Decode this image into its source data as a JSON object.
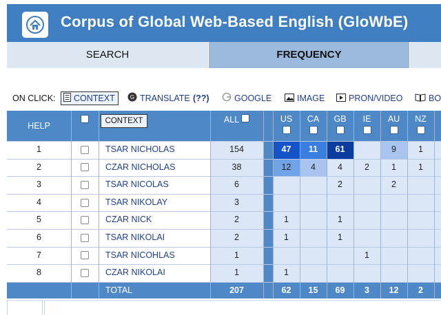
{
  "header": {
    "title": "Corpus of Global Web-Based English (GloWbE)",
    "home_icon": "home-icon",
    "color": "#3f7ec0"
  },
  "tabs": {
    "search": "SEARCH",
    "frequency": "FREQUENCY"
  },
  "onclick": {
    "label": "ON CLICK:",
    "options": [
      "CONTEXT",
      "TRANSLATE",
      "(??)",
      "GOOGLE",
      "IMAGE",
      "PRON/VIDEO",
      "BO"
    ]
  },
  "table": {
    "help": "HELP",
    "context_button": "CONTEXT",
    "all": "ALL",
    "countries": [
      "US",
      "CA",
      "GB",
      "IE",
      "AU",
      "NZ"
    ],
    "rows": [
      {
        "n": "1",
        "word": "TSAR NICHOLAS",
        "all": "154",
        "c": [
          "47",
          "11",
          "61",
          "",
          "9",
          "1"
        ]
      },
      {
        "n": "2",
        "word": "CZAR NICHOLAS",
        "all": "38",
        "c": [
          "12",
          "4",
          "4",
          "2",
          "1",
          "1"
        ]
      },
      {
        "n": "3",
        "word": "TSAR NICOLAS",
        "all": "6",
        "c": [
          "",
          "",
          "2",
          "",
          "2",
          ""
        ]
      },
      {
        "n": "4",
        "word": "TSAR NIKOLAY",
        "all": "3",
        "c": [
          "",
          "",
          "",
          "",
          "",
          ""
        ]
      },
      {
        "n": "5",
        "word": "CZAR NICK",
        "all": "2",
        "c": [
          "1",
          "",
          "1",
          "",
          "",
          ""
        ]
      },
      {
        "n": "6",
        "word": "TSAR NIKOLAI",
        "all": "2",
        "c": [
          "1",
          "",
          "1",
          "",
          "",
          ""
        ]
      },
      {
        "n": "7",
        "word": "TSAR NICOHLAS",
        "all": "1",
        "c": [
          "",
          "",
          "",
          "1",
          "",
          ""
        ]
      },
      {
        "n": "8",
        "word": "CZAR NIKOLAI",
        "all": "1",
        "c": [
          "1",
          "",
          "",
          "",
          "",
          ""
        ]
      }
    ],
    "total": {
      "label": "TOTAL",
      "all": "207",
      "c": [
        "62",
        "15",
        "69",
        "3",
        "12",
        "2"
      ]
    },
    "highlight": {
      "0_0": "#1554c8",
      "0_1": "#3a7ee0",
      "0_2": "#0b3c9e",
      "0_4": "#a9c5ef",
      "1_0": "#6fa3e6",
      "1_1": "#a9c5ef"
    }
  }
}
